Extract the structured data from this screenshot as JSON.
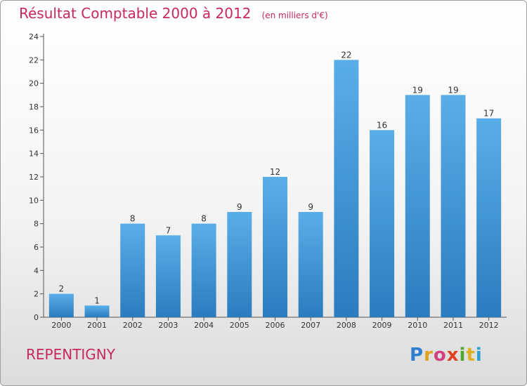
{
  "chart_data": {
    "type": "bar",
    "title": "Résultat Comptable 2000 à 2012",
    "unit_label": "(en milliers d'€)",
    "categories": [
      "2000",
      "2001",
      "2002",
      "2003",
      "2004",
      "2005",
      "2006",
      "2007",
      "2008",
      "2009",
      "2010",
      "2011",
      "2012"
    ],
    "values": [
      2,
      1,
      8,
      7,
      8,
      9,
      12,
      9,
      22,
      16,
      19,
      19,
      17
    ],
    "xlabel": "",
    "ylabel": "",
    "ylim": [
      0,
      24
    ],
    "yticks": [
      0,
      2,
      4,
      6,
      8,
      10,
      12,
      14,
      16,
      18,
      20,
      22,
      24
    ],
    "grid": false,
    "bar_color_top": "#5aaee8",
    "bar_color_bottom": "#2a7cbf"
  },
  "commune": "REPENTIGNY",
  "logo": {
    "letters": [
      "P",
      "r",
      "o",
      "x",
      "i",
      "t",
      "i"
    ]
  },
  "colors": {
    "title": "#c8285a",
    "axis": "#555555"
  }
}
